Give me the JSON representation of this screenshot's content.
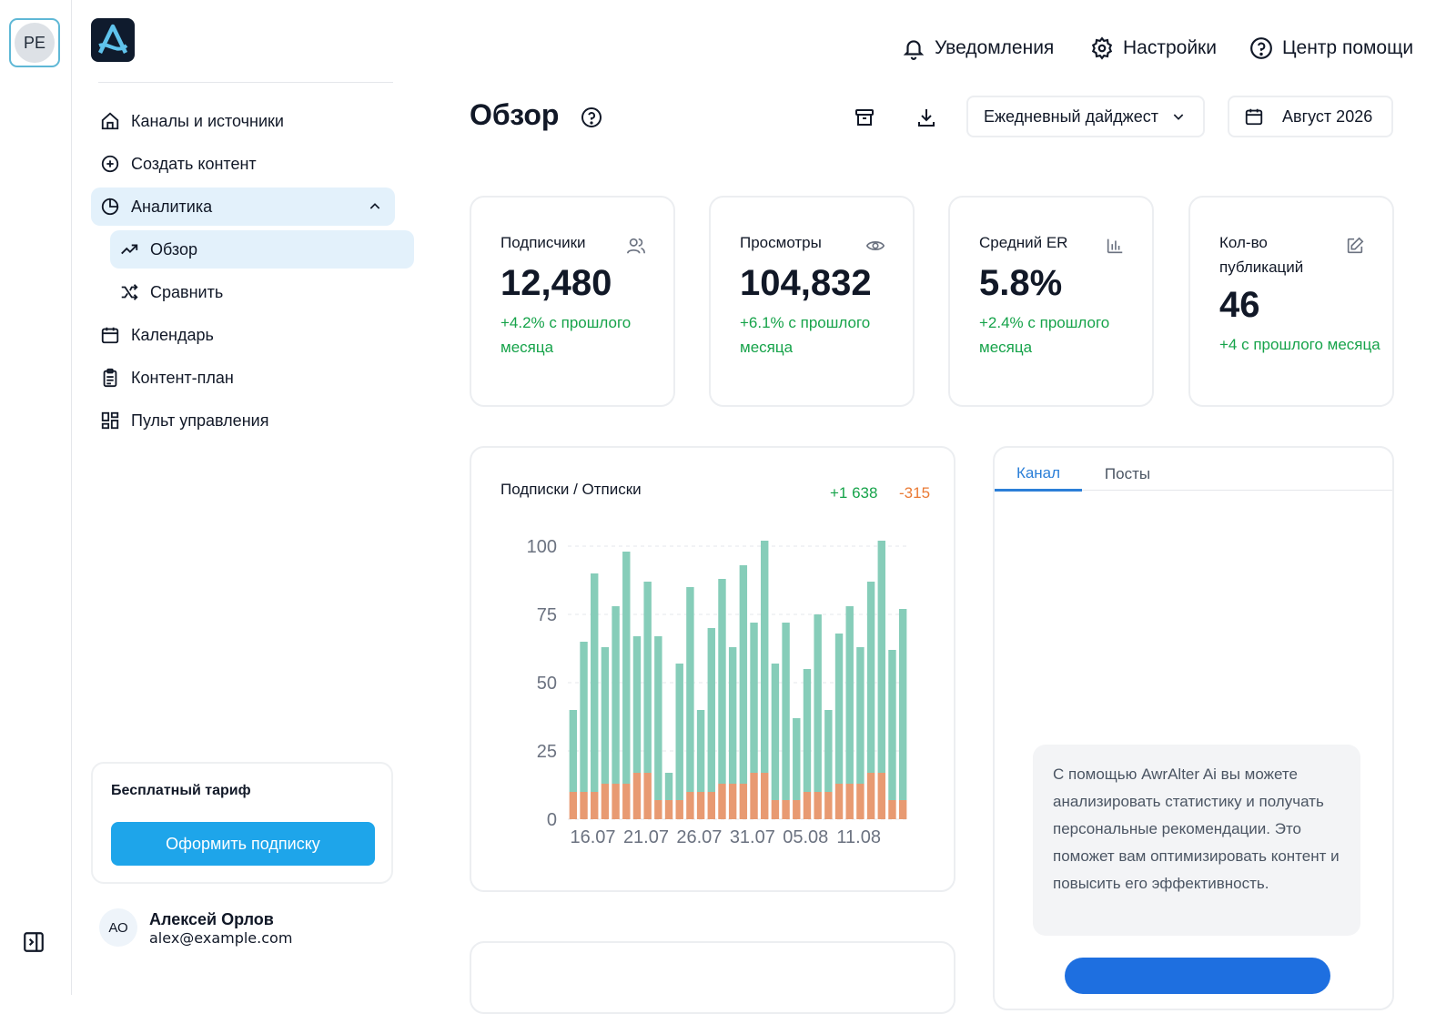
{
  "workspace": {
    "initials": "PE"
  },
  "sidebar": {
    "items": [
      {
        "label": "Каналы и источники",
        "icon": "home-icon"
      },
      {
        "label": "Создать контент",
        "icon": "plus-circle-icon"
      },
      {
        "label": "Аналитика",
        "icon": "pie-chart-icon",
        "expanded": true
      },
      {
        "label": "Обзор",
        "icon": "trend-up-icon",
        "active": true
      },
      {
        "label": "Сравнить",
        "icon": "shuffle-icon"
      },
      {
        "label": "Календарь",
        "icon": "calendar-icon"
      },
      {
        "label": "Контент-план",
        "icon": "clipboard-icon"
      },
      {
        "label": "Пульт управления",
        "icon": "grid-icon"
      }
    ],
    "plan": {
      "title": "Бесплатный тариф",
      "button": "Оформить подписку"
    },
    "user": {
      "initials": "АО",
      "name": "Алексей Орлов",
      "email": "alex@example.com"
    }
  },
  "topbar": {
    "notifications": "Уведомления",
    "settings": "Настройки",
    "help": "Центр помощи"
  },
  "header": {
    "title": "Обзор",
    "digest": "Ежедневный дайджест",
    "period": "Август 2026"
  },
  "kpis": [
    {
      "label": "Подписчики",
      "value": "12,480",
      "delta": "+4.2% с прошлого месяца",
      "icon": "users-icon"
    },
    {
      "label": "Просмотры",
      "value": "104,832",
      "delta": "+6.1% с прошлого месяца",
      "icon": "eye-icon"
    },
    {
      "label": "Средний ER",
      "value": "5.8%",
      "delta": "+2.4% с прошлого месяца",
      "icon": "bar-chart-icon"
    },
    {
      "label": "Кол-во публикаций",
      "value": "46",
      "delta": "+4 с прошлого месяца",
      "icon": "edit-icon"
    }
  ],
  "chart_card": {
    "title": "Подписки / Отписки",
    "plus": "+1 638",
    "minus": "-315"
  },
  "chart_data": {
    "type": "bar",
    "stacked": true,
    "ylim": [
      0,
      100
    ],
    "yticks": [
      "0",
      "25",
      "50",
      "75",
      "100"
    ],
    "xtick_labels": [
      "16.07",
      "21.07",
      "26.07",
      "31.07",
      "05.08",
      "11.08"
    ],
    "xtick_index": [
      1,
      6,
      11,
      16,
      21,
      26
    ],
    "colors": {
      "subscribes": "#86cdb9",
      "unsubscribes": "#e89a72"
    },
    "series": [
      {
        "values": [
          30,
          55,
          80,
          50,
          65,
          85,
          50,
          70,
          60,
          10,
          50,
          75,
          30,
          60,
          75,
          50,
          80,
          55,
          85,
          50,
          65,
          30,
          45,
          65,
          30,
          55,
          65,
          50,
          70,
          85,
          55,
          70
        ]
      },
      {
        "values": [
          10,
          10,
          10,
          13,
          13,
          13,
          17,
          17,
          7,
          7,
          7,
          10,
          10,
          10,
          13,
          13,
          13,
          17,
          17,
          7,
          7,
          7,
          10,
          10,
          10,
          13,
          13,
          13,
          17,
          17,
          7,
          7
        ]
      }
    ]
  },
  "side_panel": {
    "tabs": [
      "Канал",
      "Посты"
    ],
    "ai_text": "С помощью AwrAlter Ai вы можете анализировать статистику и получать персональные рекомендации. Это поможет вам оптимизировать контент и повысить его эффективность."
  }
}
